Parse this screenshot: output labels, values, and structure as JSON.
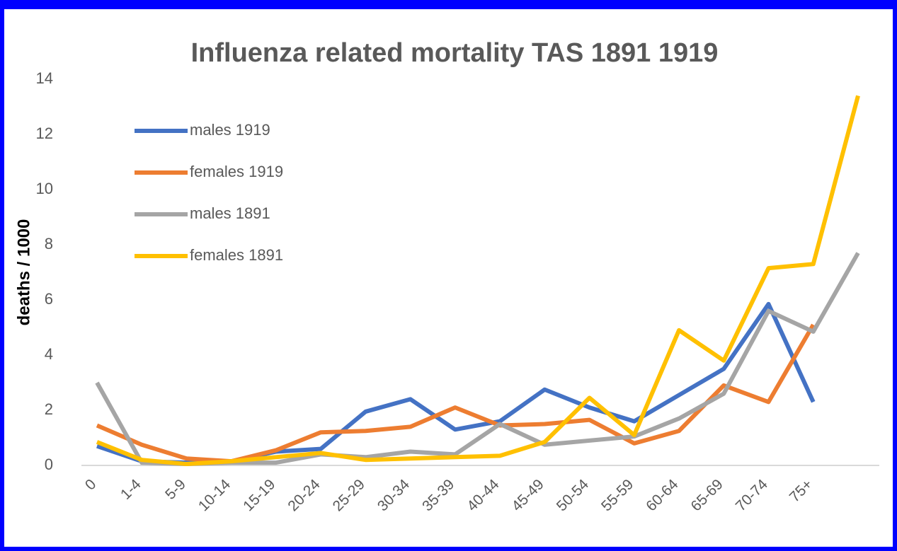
{
  "chart_data": {
    "type": "line",
    "title": "Influenza related mortality TAS 1891 1919",
    "y_label": "deaths / 1000",
    "categories": [
      "0",
      "1-4",
      "5-9",
      "10-14",
      "15-19",
      "20-24",
      "25-29",
      "30-34",
      "35-39",
      "40-44",
      "45-49",
      "50-54",
      "55-59",
      "60-64",
      "65-69",
      "70-74",
      "75+",
      null
    ],
    "series": [
      {
        "name": "males 1919",
        "color": "#4472c4",
        "values": [
          0.7,
          0.15,
          0.1,
          0.15,
          0.5,
          0.6,
          1.95,
          2.4,
          1.3,
          1.6,
          2.75,
          2.1,
          1.6,
          2.55,
          3.5,
          5.85,
          2.3,
          null
        ]
      },
      {
        "name": "females 1919",
        "color": "#ed7d31",
        "values": [
          1.45,
          0.75,
          0.25,
          0.15,
          0.55,
          1.2,
          1.25,
          1.4,
          2.1,
          1.45,
          1.5,
          1.65,
          0.8,
          1.25,
          2.9,
          2.3,
          5.1,
          null
        ]
      },
      {
        "name": "males 1891",
        "color": "#a5a5a5",
        "values": [
          3.0,
          0.1,
          0.05,
          0.1,
          0.1,
          0.4,
          0.3,
          0.5,
          0.4,
          1.5,
          0.75,
          0.9,
          1.05,
          1.7,
          2.6,
          5.6,
          4.85,
          7.7
        ]
      },
      {
        "name": "females 1891",
        "color": "#ffc000",
        "values": [
          0.85,
          0.2,
          0.05,
          0.15,
          0.3,
          0.45,
          0.2,
          0.25,
          0.3,
          0.35,
          0.85,
          2.45,
          1.1,
          4.9,
          3.8,
          7.15,
          7.3,
          13.4
        ]
      }
    ],
    "ylim": [
      0,
      14
    ],
    "yticks": [
      0,
      2,
      4,
      6,
      8,
      10,
      12,
      14
    ],
    "grid": false
  }
}
